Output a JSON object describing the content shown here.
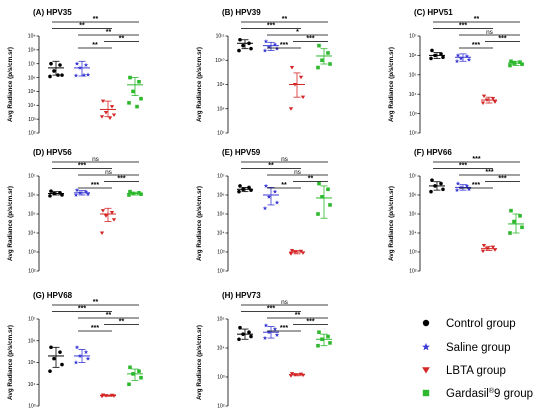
{
  "colors": {
    "control": "#000000",
    "saline": "#3a3ad4",
    "lbta": "#d42626",
    "gardasil": "#2eb82e"
  },
  "legend": {
    "items": [
      {
        "label": "Control group",
        "color": "#000000",
        "marker": "circle"
      },
      {
        "label": "Saline group",
        "color": "#3a3ad4",
        "marker": "star"
      },
      {
        "label": "LBTA group",
        "color": "#d42626",
        "marker": "triangle-down"
      },
      {
        "label": "Gardasil",
        "sup": "®",
        "suffix": "9 group",
        "color": "#2eb82e",
        "marker": "square"
      }
    ]
  },
  "chart_data": [
    {
      "type": "scatter",
      "panel": "(A) HPV35",
      "title": "(A) HPV35",
      "ylabel": "Avg Radiance (p/s/cm.sr)",
      "yscale": "log",
      "ylim": [
        100,
        1000000000
      ],
      "yticks": [
        "10⁹",
        "10⁸",
        "10⁷",
        "10⁶",
        "10⁵",
        "10⁴",
        "10³",
        "10²"
      ],
      "groups": [
        {
          "name": "Control group",
          "mean": 5000000,
          "sd_lo": 1500000,
          "sd_hi": 15000000,
          "points": [
            10000000,
            8000000,
            3000000,
            1500000,
            1200000,
            1500000
          ]
        },
        {
          "name": "Saline group",
          "mean": 5000000,
          "sd_lo": 1300000,
          "sd_hi": 15000000,
          "points": [
            10000000,
            8000000,
            5000000,
            1600000,
            1400000,
            1500000
          ]
        },
        {
          "name": "LBTA group",
          "mean": 5000,
          "sd_lo": 1500,
          "sd_hi": 20000,
          "points": [
            20000,
            8000,
            3000,
            2000,
            1500,
            1200
          ]
        },
        {
          "name": "Gardasil®9 group",
          "mean": 300000,
          "sd_lo": 50000,
          "sd_hi": 1000000,
          "points": [
            1000000,
            500000,
            100000,
            30000,
            15000,
            8000
          ]
        }
      ],
      "comparisons": [
        {
          "from": 0,
          "to": 3,
          "label": "**"
        },
        {
          "from": 0,
          "to": 2,
          "label": "**"
        },
        {
          "from": 1,
          "to": 3,
          "label": "**"
        },
        {
          "from": 2,
          "to": 3,
          "label": "**"
        },
        {
          "from": 1,
          "to": 2,
          "label": "**"
        }
      ]
    },
    {
      "type": "scatter",
      "panel": "(B) HPV39",
      "title": "(B) HPV39",
      "ylabel": "Avg Radiance (p/s/cm.sr)",
      "yscale": "log",
      "ylim": [
        10000000,
        100000000000
      ],
      "yticks": [
        "10¹¹",
        "10¹⁰",
        "10⁹",
        "10⁸",
        "10⁷"
      ],
      "groups": [
        {
          "name": "Control group",
          "mean": 50000000000,
          "sd_lo": 30000000000,
          "sd_hi": 70000000000,
          "points": [
            70000000000,
            50000000000,
            40000000000,
            30000000000,
            25000000000
          ]
        },
        {
          "name": "Saline group",
          "mean": 40000000000,
          "sd_lo": 25000000000,
          "sd_hi": 55000000000,
          "points": [
            60000000000,
            45000000000,
            35000000000,
            30000000000,
            25000000000
          ]
        },
        {
          "name": "LBTA group",
          "mean": 1000000000,
          "sd_lo": 300000000,
          "sd_hi": 3000000000,
          "points": [
            5000000000,
            2000000000,
            1000000000,
            300000000,
            100000000
          ]
        },
        {
          "name": "Gardasil®9 group",
          "mean": 15000000000,
          "sd_lo": 7000000000,
          "sd_hi": 30000000000,
          "points": [
            40000000000,
            20000000000,
            10000000000,
            7000000000,
            5000000000
          ]
        }
      ],
      "comparisons": [
        {
          "from": 0,
          "to": 3,
          "label": "**"
        },
        {
          "from": 0,
          "to": 2,
          "label": "***"
        },
        {
          "from": 1,
          "to": 3,
          "label": "*"
        },
        {
          "from": 2,
          "to": 3,
          "label": "***"
        },
        {
          "from": 1,
          "to": 2,
          "label": "***"
        }
      ]
    },
    {
      "type": "scatter",
      "panel": "(C) HPV51",
      "title": "(C) HPV51",
      "ylabel": "Avg Radiance (p/s/cm.sr)",
      "yscale": "log",
      "ylim": [
        100,
        10000000
      ],
      "yticks": [
        "10⁷",
        "10⁶",
        "10⁵",
        "10⁴",
        "10³",
        "10²"
      ],
      "groups": [
        {
          "name": "Control group",
          "mean": 1000000,
          "sd_lo": 700000,
          "sd_hi": 1400000,
          "points": [
            1800000,
            1200000,
            1000000,
            800000,
            700000
          ]
        },
        {
          "name": "Saline group",
          "mean": 800000,
          "sd_lo": 500000,
          "sd_hi": 1200000,
          "points": [
            1000000,
            900000,
            700000,
            600000,
            500000
          ]
        },
        {
          "name": "LBTA group",
          "mean": 5000,
          "sd_lo": 3500,
          "sd_hi": 7000,
          "points": [
            8000,
            6000,
            5000,
            4000,
            3500
          ]
        },
        {
          "name": "Gardasil®9 group",
          "mean": 400000,
          "sd_lo": 300000,
          "sd_hi": 500000,
          "points": [
            500000,
            450000,
            400000,
            350000,
            300000
          ]
        }
      ],
      "comparisons": [
        {
          "from": 0,
          "to": 3,
          "label": "**"
        },
        {
          "from": 0,
          "to": 2,
          "label": "***"
        },
        {
          "from": 1,
          "to": 3,
          "label": "ns"
        },
        {
          "from": 2,
          "to": 3,
          "label": "***"
        },
        {
          "from": 1,
          "to": 2,
          "label": "***"
        }
      ]
    },
    {
      "type": "scatter",
      "panel": "(D) HPV56",
      "title": "(D) HPV56",
      "ylabel": "Avg Radiance (p/s/cm.sr)",
      "yscale": "log",
      "ylim": [
        100,
        10000000
      ],
      "yticks": [
        "10⁷",
        "10⁶",
        "10⁵",
        "10⁴",
        "10³",
        "10²"
      ],
      "groups": [
        {
          "name": "Control group",
          "mean": 1200000,
          "sd_lo": 1000000,
          "sd_hi": 1500000,
          "points": [
            1600000,
            1300000,
            1200000,
            1000000,
            900000
          ]
        },
        {
          "name": "Saline group",
          "mean": 1300000,
          "sd_lo": 1000000,
          "sd_hi": 1700000,
          "points": [
            1800000,
            1500000,
            1300000,
            1100000,
            1000000
          ]
        },
        {
          "name": "LBTA group",
          "mean": 100000,
          "sd_lo": 40000,
          "sd_hi": 200000,
          "points": [
            150000,
            120000,
            80000,
            50000,
            10000
          ]
        },
        {
          "name": "Gardasil®9 group",
          "mean": 1200000,
          "sd_lo": 1000000,
          "sd_hi": 1400000,
          "points": [
            1500000,
            1300000,
            1200000,
            1100000,
            1000000
          ]
        }
      ],
      "comparisons": [
        {
          "from": 0,
          "to": 3,
          "label": "ns"
        },
        {
          "from": 0,
          "to": 2,
          "label": "***"
        },
        {
          "from": 1,
          "to": 3,
          "label": "ns"
        },
        {
          "from": 2,
          "to": 3,
          "label": "***"
        },
        {
          "from": 1,
          "to": 2,
          "label": "***"
        }
      ]
    },
    {
      "type": "scatter",
      "panel": "(E) HPV59",
      "title": "(E) HPV59",
      "ylabel": "Avg Radiance (p/s/cm.sr)",
      "yscale": "log",
      "ylim": [
        100,
        10000000
      ],
      "yticks": [
        "10⁷",
        "10⁶",
        "10⁵",
        "10⁴",
        "10³",
        "10²"
      ],
      "groups": [
        {
          "name": "Control group",
          "mean": 2000000,
          "sd_lo": 1500000,
          "sd_hi": 2500000,
          "points": [
            3000000,
            2500000,
            2000000,
            1800000,
            1500000
          ]
        },
        {
          "name": "Saline group",
          "mean": 1000000,
          "sd_lo": 300000,
          "sd_hi": 2500000,
          "points": [
            3000000,
            1500000,
            800000,
            400000,
            200000
          ]
        },
        {
          "name": "LBTA group",
          "mean": 1000,
          "sd_lo": 800,
          "sd_hi": 1200,
          "points": [
            1200,
            1100,
            1000,
            900,
            800
          ]
        },
        {
          "name": "Gardasil®9 group",
          "mean": 700000,
          "sd_lo": 60000,
          "sd_hi": 3000000,
          "points": [
            4000000,
            2000000,
            800000,
            300000,
            100000
          ]
        }
      ],
      "comparisons": [
        {
          "from": 0,
          "to": 3,
          "label": "ns"
        },
        {
          "from": 0,
          "to": 2,
          "label": "**"
        },
        {
          "from": 1,
          "to": 3,
          "label": "ns"
        },
        {
          "from": 2,
          "to": 3,
          "label": "**"
        },
        {
          "from": 1,
          "to": 2,
          "label": "**"
        }
      ]
    },
    {
      "type": "scatter",
      "panel": "(F) HPV66",
      "title": "(F) HPV66",
      "ylabel": "Avg Radiance (p/s/cm.sr)",
      "yscale": "log",
      "ylim": [
        100,
        10000000
      ],
      "yticks": [
        "10⁷",
        "10⁶",
        "10⁵",
        "10⁴",
        "10³",
        "10²"
      ],
      "groups": [
        {
          "name": "Control group",
          "mean": 3000000,
          "sd_lo": 1800000,
          "sd_hi": 5000000,
          "points": [
            6000000,
            4000000,
            3000000,
            2000000,
            1500000
          ]
        },
        {
          "name": "Saline group",
          "mean": 2500000,
          "sd_lo": 1800000,
          "sd_hi": 3500000,
          "points": [
            4000000,
            3000000,
            2500000,
            2000000,
            1800000
          ]
        },
        {
          "name": "LBTA group",
          "mean": 1500,
          "sd_lo": 1200,
          "sd_hi": 2000,
          "points": [
            2200,
            1800,
            1500,
            1300,
            1100
          ]
        },
        {
          "name": "Gardasil®9 group",
          "mean": 30000,
          "sd_lo": 10000,
          "sd_hi": 100000,
          "points": [
            150000,
            80000,
            40000,
            20000,
            10000
          ]
        }
      ],
      "comparisons": [
        {
          "from": 0,
          "to": 3,
          "label": "***"
        },
        {
          "from": 0,
          "to": 2,
          "label": "***"
        },
        {
          "from": 1,
          "to": 3,
          "label": "***"
        },
        {
          "from": 2,
          "to": 3,
          "label": "***"
        },
        {
          "from": 1,
          "to": 2,
          "label": "***"
        }
      ]
    },
    {
      "type": "scatter",
      "panel": "(G) HPV68",
      "title": "(G) HPV68",
      "ylabel": "Avg Radiance (p/s/cm.sr)",
      "yscale": "log",
      "ylim": [
        1000,
        10000000
      ],
      "yticks": [
        "10⁷",
        "10⁶",
        "10⁵",
        "10⁴",
        "10³"
      ],
      "groups": [
        {
          "name": "Control group",
          "mean": 200000,
          "sd_lo": 60000,
          "sd_hi": 500000,
          "points": [
            500000,
            300000,
            150000,
            80000,
            40000
          ]
        },
        {
          "name": "Saline group",
          "mean": 200000,
          "sd_lo": 100000,
          "sd_hi": 400000,
          "points": [
            500000,
            300000,
            200000,
            150000,
            100000
          ]
        },
        {
          "name": "LBTA group",
          "mean": 3000,
          "sd_lo": 2800,
          "sd_hi": 3200,
          "points": [
            3200,
            3100,
            3000,
            2900,
            2800
          ]
        },
        {
          "name": "Gardasil®9 group",
          "mean": 30000,
          "sd_lo": 15000,
          "sd_hi": 50000,
          "points": [
            60000,
            40000,
            30000,
            20000,
            10000
          ]
        }
      ],
      "comparisons": [
        {
          "from": 0,
          "to": 3,
          "label": "**"
        },
        {
          "from": 0,
          "to": 2,
          "label": "***"
        },
        {
          "from": 1,
          "to": 3,
          "label": "**"
        },
        {
          "from": 2,
          "to": 3,
          "label": "**"
        },
        {
          "from": 1,
          "to": 2,
          "label": "***"
        }
      ]
    },
    {
      "type": "scatter",
      "panel": "(H) HPV73",
      "title": "(H) HPV73",
      "ylabel": "Avg Radiance (p/s/cm.sr)",
      "yscale": "log",
      "ylim": [
        100,
        100000
      ],
      "yticks": [
        "10⁵",
        "10⁴",
        "10³",
        "10²"
      ],
      "groups": [
        {
          "name": "Control group",
          "mean": 30000,
          "sd_lo": 20000,
          "sd_hi": 45000,
          "points": [
            50000,
            35000,
            30000,
            25000,
            20000
          ]
        },
        {
          "name": "Saline group",
          "mean": 35000,
          "sd_lo": 22000,
          "sd_hi": 55000,
          "points": [
            60000,
            45000,
            35000,
            28000,
            22000
          ]
        },
        {
          "name": "LBTA group",
          "mean": 1200,
          "sd_lo": 1100,
          "sd_hi": 1300,
          "points": [
            1300,
            1250,
            1200,
            1150,
            1100
          ]
        },
        {
          "name": "Gardasil®9 group",
          "mean": 20000,
          "sd_lo": 12000,
          "sd_hi": 30000,
          "points": [
            35000,
            25000,
            20000,
            15000,
            12000
          ]
        }
      ],
      "comparisons": [
        {
          "from": 0,
          "to": 3,
          "label": "ns"
        },
        {
          "from": 0,
          "to": 2,
          "label": "***"
        },
        {
          "from": 1,
          "to": 3,
          "label": "**"
        },
        {
          "from": 2,
          "to": 3,
          "label": "***"
        },
        {
          "from": 1,
          "to": 2,
          "label": "***"
        }
      ]
    }
  ]
}
